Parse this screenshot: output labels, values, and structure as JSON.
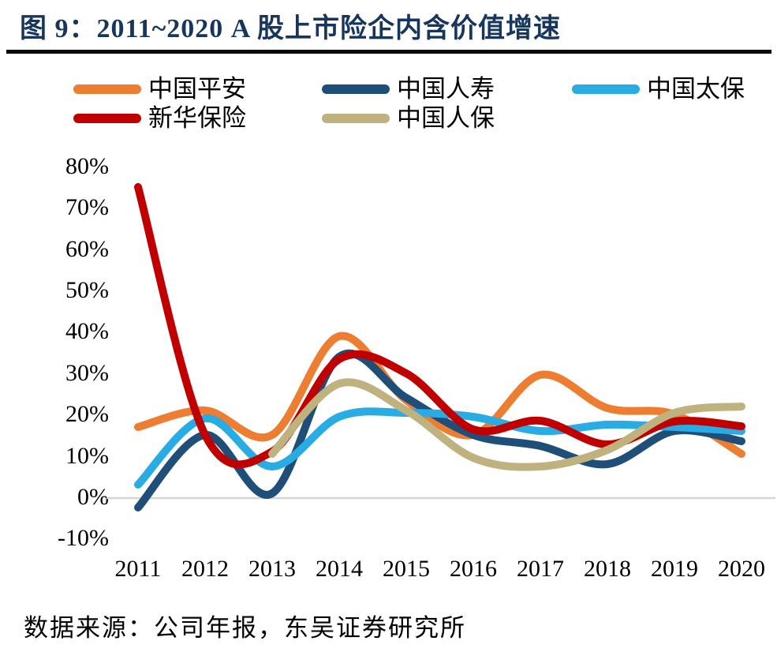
{
  "figure": {
    "title": "图 9：2011~2020 A 股上市险企内含价值增速",
    "source": "数据来源：公司年报，东吴证券研究所"
  },
  "chart_data": {
    "type": "line",
    "smooth": true,
    "x": [
      2011,
      2012,
      2013,
      2014,
      2015,
      2016,
      2017,
      2018,
      2019,
      2020
    ],
    "series": [
      {
        "name": "中国平安",
        "slug": "pingan",
        "color": "#ED7D31",
        "values": [
          17,
          21,
          15,
          39,
          23.5,
          15,
          29.5,
          21.5,
          20,
          10.5
        ]
      },
      {
        "name": "中国人寿",
        "slug": "renshou",
        "color": "#1F4E79",
        "values": [
          -2.5,
          15,
          1,
          34,
          24,
          15,
          12.5,
          8,
          16,
          13.5
        ]
      },
      {
        "name": "中国太保",
        "slug": "taibao",
        "color": "#29ABE3",
        "values": [
          3,
          19,
          7.5,
          19.5,
          20.5,
          19.5,
          16,
          17.5,
          17,
          16
        ]
      },
      {
        "name": "新华保险",
        "slug": "xinhua",
        "color": "#C00000",
        "values": [
          75,
          15,
          11,
          33.5,
          30,
          16.5,
          18.5,
          12.8,
          18.3,
          17.2
        ]
      },
      {
        "name": "中国人保",
        "slug": "renbao",
        "color": "#BFB27E",
        "values": [
          null,
          null,
          10.5,
          27.5,
          21,
          9.5,
          7.5,
          11.5,
          20.5,
          22
        ]
      }
    ],
    "yticks": [
      "80%",
      "70%",
      "60%",
      "50%",
      "40%",
      "30%",
      "20%",
      "10%",
      "0%",
      "-10%"
    ],
    "ylim": [
      -10,
      80
    ],
    "xlabel": "",
    "ylabel": "",
    "legend_position": "top",
    "grid": "zero-line-only",
    "zero_line_color": "#D5D5D5",
    "title_color": "#17365D"
  }
}
